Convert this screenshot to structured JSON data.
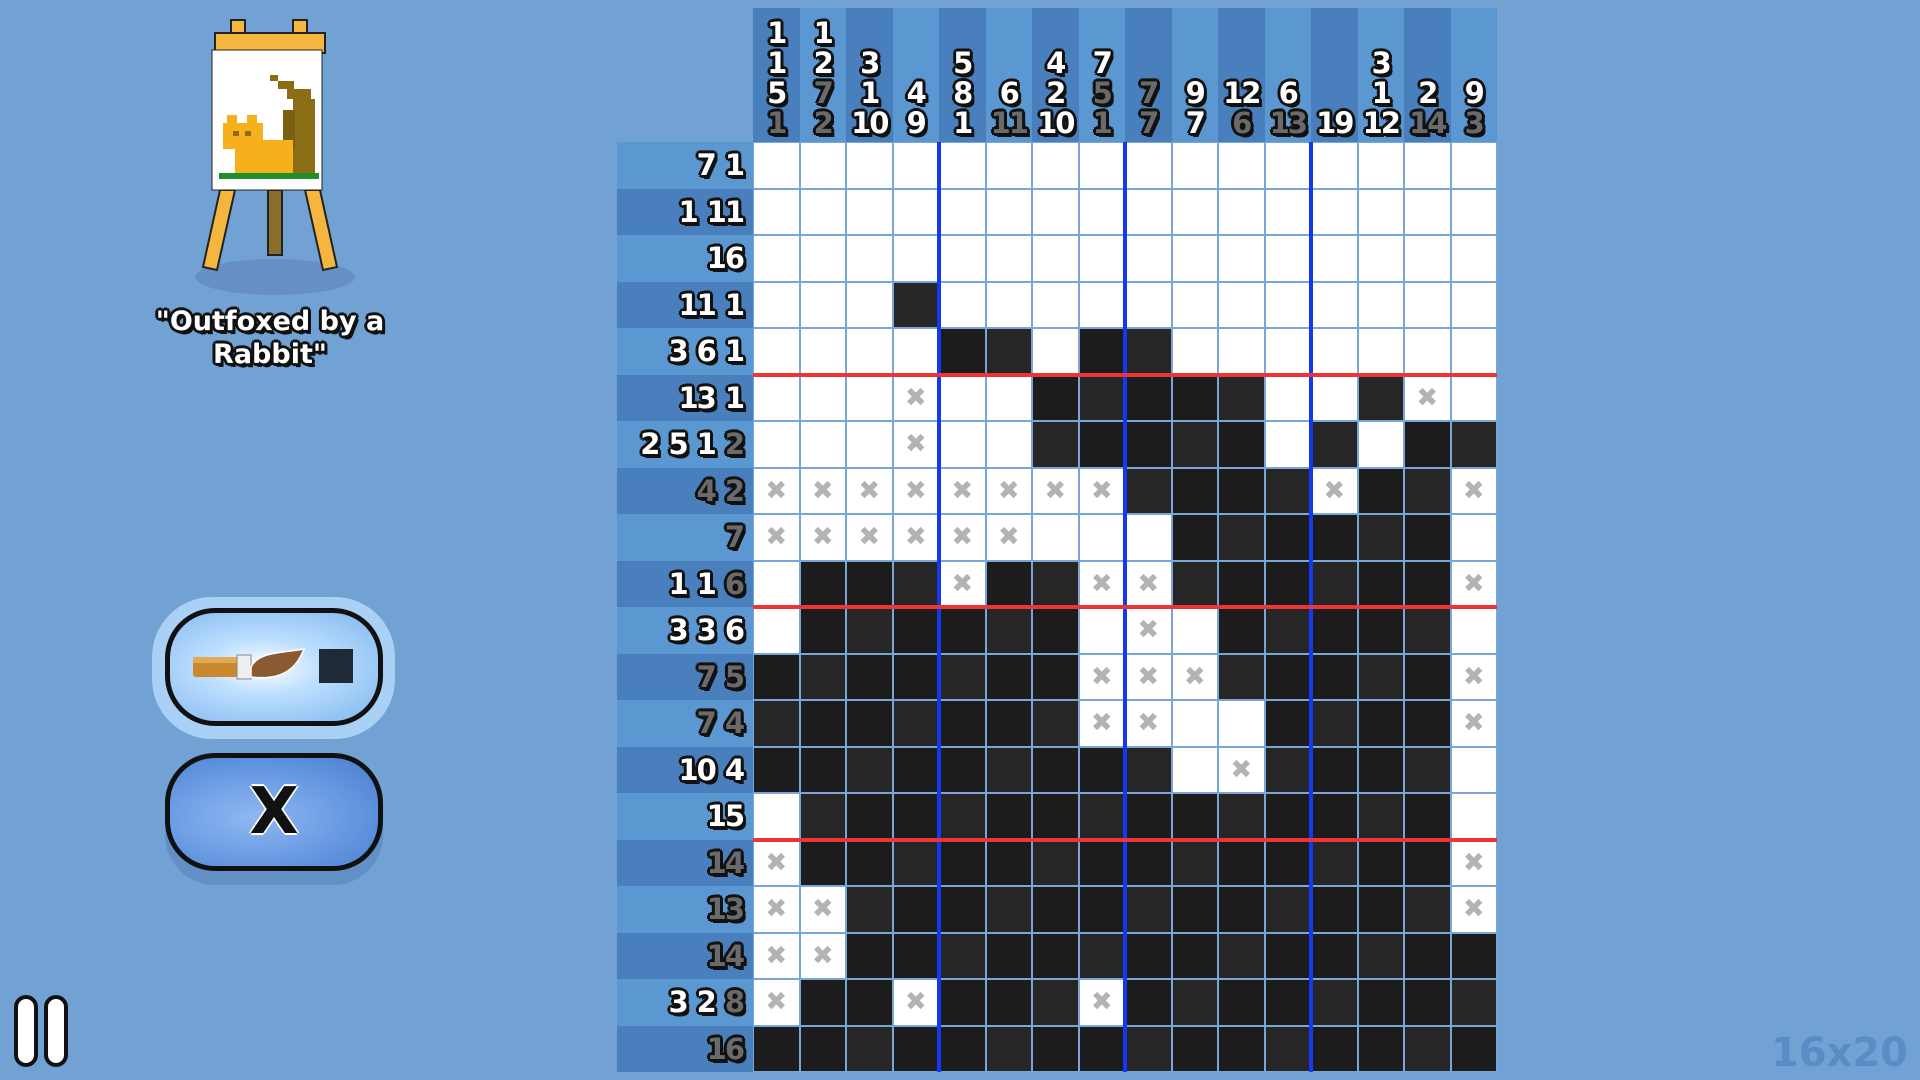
{
  "puzzle": {
    "title": "\"Outfoxed by a Rabbit\"",
    "size_label": "16x20"
  },
  "tools": {
    "paint_mode": {
      "icon": "paintbrush-icon",
      "swatch_color": "#1f2a36",
      "selected": true
    },
    "cross_mode": {
      "label": "X",
      "selected": false
    }
  },
  "pause": {
    "icon": "pause-icon"
  },
  "colors": {
    "filled": "#1c1c1c",
    "empty": "#ffffff",
    "cross": "#b3b3b3",
    "block_divider": "#1238f0",
    "row_divider": "#ee3535",
    "background": "#72a2d4"
  },
  "column_clues": [
    {
      "clues": [
        "1",
        "1",
        "5",
        "1"
      ],
      "done": [
        0,
        0,
        0,
        1
      ]
    },
    {
      "clues": [
        "1",
        "2",
        "7",
        "2"
      ],
      "done": [
        0,
        0,
        1,
        1
      ]
    },
    {
      "clues": [
        "3",
        "1",
        "10"
      ],
      "done": [
        0,
        0,
        0
      ]
    },
    {
      "clues": [
        "4",
        "9"
      ],
      "done": [
        0,
        0
      ]
    },
    {
      "clues": [
        "5",
        "8",
        "1"
      ],
      "done": [
        0,
        0,
        0
      ]
    },
    {
      "clues": [
        "6",
        "11"
      ],
      "done": [
        0,
        1
      ]
    },
    {
      "clues": [
        "4",
        "2",
        "10"
      ],
      "done": [
        0,
        0,
        0
      ]
    },
    {
      "clues": [
        "7",
        "5",
        "1"
      ],
      "done": [
        0,
        1,
        1
      ]
    },
    {
      "clues": [
        "7",
        "7"
      ],
      "done": [
        1,
        1
      ]
    },
    {
      "clues": [
        "9",
        "7"
      ],
      "done": [
        0,
        0
      ]
    },
    {
      "clues": [
        "12",
        "6"
      ],
      "done": [
        0,
        1
      ]
    },
    {
      "clues": [
        "6",
        "13"
      ],
      "done": [
        0,
        1
      ]
    },
    {
      "clues": [
        "19"
      ],
      "done": [
        0
      ]
    },
    {
      "clues": [
        "3",
        "1",
        "12"
      ],
      "done": [
        0,
        0,
        0
      ]
    },
    {
      "clues": [
        "2",
        "14"
      ],
      "done": [
        0,
        1
      ]
    },
    {
      "clues": [
        "9",
        "3"
      ],
      "done": [
        0,
        1
      ]
    }
  ],
  "row_clues": [
    {
      "clues": [
        "7",
        "1"
      ],
      "done": [
        0,
        0
      ]
    },
    {
      "clues": [
        "1",
        "11"
      ],
      "done": [
        0,
        0
      ]
    },
    {
      "clues": [
        "16"
      ],
      "done": [
        0
      ]
    },
    {
      "clues": [
        "11",
        "1"
      ],
      "done": [
        0,
        0
      ]
    },
    {
      "clues": [
        "3",
        "6",
        "1"
      ],
      "done": [
        0,
        0,
        0
      ]
    },
    {
      "clues": [
        "13",
        "1"
      ],
      "done": [
        0,
        0
      ]
    },
    {
      "clues": [
        "2",
        "5",
        "1",
        "2"
      ],
      "done": [
        0,
        0,
        0,
        1
      ]
    },
    {
      "clues": [
        "4",
        "2"
      ],
      "done": [
        1,
        1
      ]
    },
    {
      "clues": [
        "7"
      ],
      "done": [
        1
      ]
    },
    {
      "clues": [
        "1",
        "1",
        "6"
      ],
      "done": [
        0,
        0,
        1
      ]
    },
    {
      "clues": [
        "3",
        "3",
        "6"
      ],
      "done": [
        0,
        0,
        0
      ]
    },
    {
      "clues": [
        "7",
        "5"
      ],
      "done": [
        1,
        1
      ]
    },
    {
      "clues": [
        "7",
        "4"
      ],
      "done": [
        1,
        1
      ]
    },
    {
      "clues": [
        "10",
        "4"
      ],
      "done": [
        0,
        0
      ]
    },
    {
      "clues": [
        "15"
      ],
      "done": [
        0
      ]
    },
    {
      "clues": [
        "14"
      ],
      "done": [
        1
      ]
    },
    {
      "clues": [
        "13"
      ],
      "done": [
        1
      ]
    },
    {
      "clues": [
        "14"
      ],
      "done": [
        1
      ]
    },
    {
      "clues": [
        "3",
        "2",
        "8"
      ],
      "done": [
        0,
        0,
        1
      ]
    },
    {
      "clues": [
        "16"
      ],
      "done": [
        1
      ]
    }
  ],
  "grid_state": [
    "................",
    "................",
    "................",
    "...#............",
    "....##.##.......",
    "...x..#####..#x.",
    "...x..#####.#.##",
    "xxxxxxxx####x##x",
    "xxxxxx...######.",
    ".###x##xx######x",
    ".######.x.#####.",
    "#######xxx#####x",
    "#######xx..####x",
    "#########.x####.",
    ".##############.",
    "x##############x",
    "xx#############x",
    "xx##############",
    "x##x###x########",
    "################"
  ]
}
